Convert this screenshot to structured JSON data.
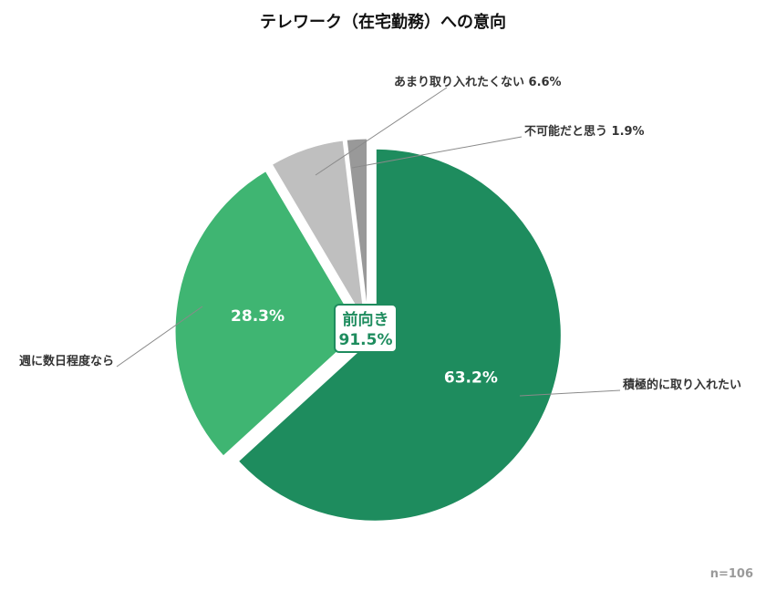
{
  "title": "テレワーク（在宅勤務）への意向",
  "sample_size": "n=106",
  "center_badge": {
    "line1": "前向き",
    "line2": "91.5%"
  },
  "chart_data": {
    "type": "pie",
    "title": "テレワーク（在宅勤務）への意向",
    "slices": [
      {
        "label": "積極的に取り入れたい",
        "value": 63.2,
        "display": "63.2%",
        "color": "#1e8c5e",
        "inside": true
      },
      {
        "label": "週に数日程度なら",
        "value": 28.3,
        "display": "28.3%",
        "color": "#3fb572",
        "inside": true
      },
      {
        "label": "あまり取り入れたくない",
        "value": 6.6,
        "display": "あまり取り入れたくない 6.6%",
        "color": "#bfbfbf",
        "inside": false
      },
      {
        "label": "不可能だと思う",
        "value": 1.9,
        "display": "不可能だと思う 1.9%",
        "color": "#999999",
        "inside": false
      }
    ],
    "callouts": [
      "積極的に取り入れたい",
      "週に数日程度なら",
      "あまり取り入れたくない 6.6%",
      "不可能だと思う 1.9%"
    ]
  }
}
